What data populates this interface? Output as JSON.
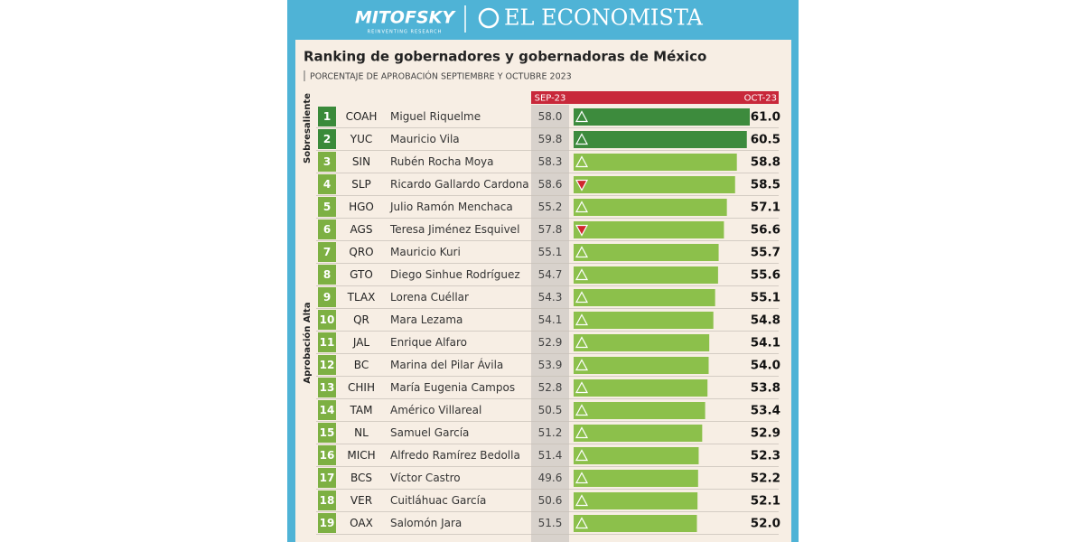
{
  "header": {
    "brand_left": "MITOFSKY",
    "brand_left_tagline": "REINVENTING RESEARCH",
    "brand_right": "EL ECONOMISTA"
  },
  "title": "Ranking de gobernadores y gobernadoras de México",
  "subtitle": "PORCENTAJE DE APROBACIÓN SEPTIEMBRE Y OCTUBRE 2023",
  "columns": {
    "sep": "SEP-23",
    "oct": "OCT-23"
  },
  "groups": [
    {
      "label": "Sobresaliente",
      "rank_color": "#3a8a3a",
      "bar_color": "#3d8b3d",
      "rows": [
        {
          "rank": 1,
          "state": "COAH",
          "name": "Miguel Riquelme",
          "sep": {
            "value": 58,
            "label": "58.0"
          },
          "oct": {
            "value": 61,
            "label": "61.0"
          }
        },
        {
          "rank": 2,
          "state": "YUC",
          "name": "Mauricio Vila",
          "sep": 59.8,
          "oct": 60.5
        }
      ]
    },
    {
      "label": "Aprobación Alta",
      "rank_color": "#7db043",
      "bar_color": "#8cc04b",
      "rows": [
        {
          "rank": 3,
          "state": "SIN",
          "name": "Rubén Rocha Moya",
          "sep": 58.3,
          "oct": 58.8
        },
        {
          "rank": 4,
          "state": "SLP",
          "name": "Ricardo Gallardo Cardona",
          "sep": 58.6,
          "oct": 58.5
        },
        {
          "rank": 5,
          "state": "HGO",
          "name": "Julio Ramón Menchaca",
          "sep": 55.2,
          "oct": 57.1
        },
        {
          "rank": 6,
          "state": "AGS",
          "name": "Teresa Jiménez Esquivel",
          "sep": 57.8,
          "oct": 56.6
        },
        {
          "rank": 7,
          "state": "QRO",
          "name": "Mauricio Kuri",
          "sep": 55.1,
          "oct": 55.7
        },
        {
          "rank": 8,
          "state": "GTO",
          "name": "Diego Sinhue Rodríguez",
          "sep": 54.7,
          "oct": 55.6
        },
        {
          "rank": 9,
          "state": "TLAX",
          "name": "Lorena Cuéllar",
          "sep": 54.3,
          "oct": 55.1
        },
        {
          "rank": 10,
          "state": "QR",
          "name": "Mara Lezama",
          "sep": 54.1,
          "oct": 54.8
        },
        {
          "rank": 11,
          "state": "JAL",
          "name": "Enrique Alfaro",
          "sep": 52.9,
          "oct": 54.1
        },
        {
          "rank": 12,
          "state": "BC",
          "name": "Marina del Pilar Ávila",
          "sep": 53.9,
          "oct": {
            "value": 54,
            "label": "54.0"
          }
        },
        {
          "rank": 13,
          "state": "CHIH",
          "name": "María Eugenia Campos",
          "sep": 52.8,
          "oct": 53.8
        },
        {
          "rank": 14,
          "state": "TAM",
          "name": "Américo Villareal",
          "sep": 50.5,
          "oct": 53.4
        },
        {
          "rank": 15,
          "state": "NL",
          "name": "Samuel García",
          "sep": 51.2,
          "oct": 52.9
        },
        {
          "rank": 16,
          "state": "MICH",
          "name": "Alfredo Ramírez Bedolla",
          "sep": 51.4,
          "oct": 52.3
        },
        {
          "rank": 17,
          "state": "BCS",
          "name": "Víctor Castro",
          "sep": 49.6,
          "oct": 52.2
        },
        {
          "rank": 18,
          "state": "VER",
          "name": "Cuitláhuac García",
          "sep": 50.6,
          "oct": 52.1
        },
        {
          "rank": 19,
          "state": "OAX",
          "name": "Salomón Jara",
          "sep": 51.5,
          "oct": {
            "value": 52,
            "label": "52.0"
          }
        }
      ]
    }
  ]
}
